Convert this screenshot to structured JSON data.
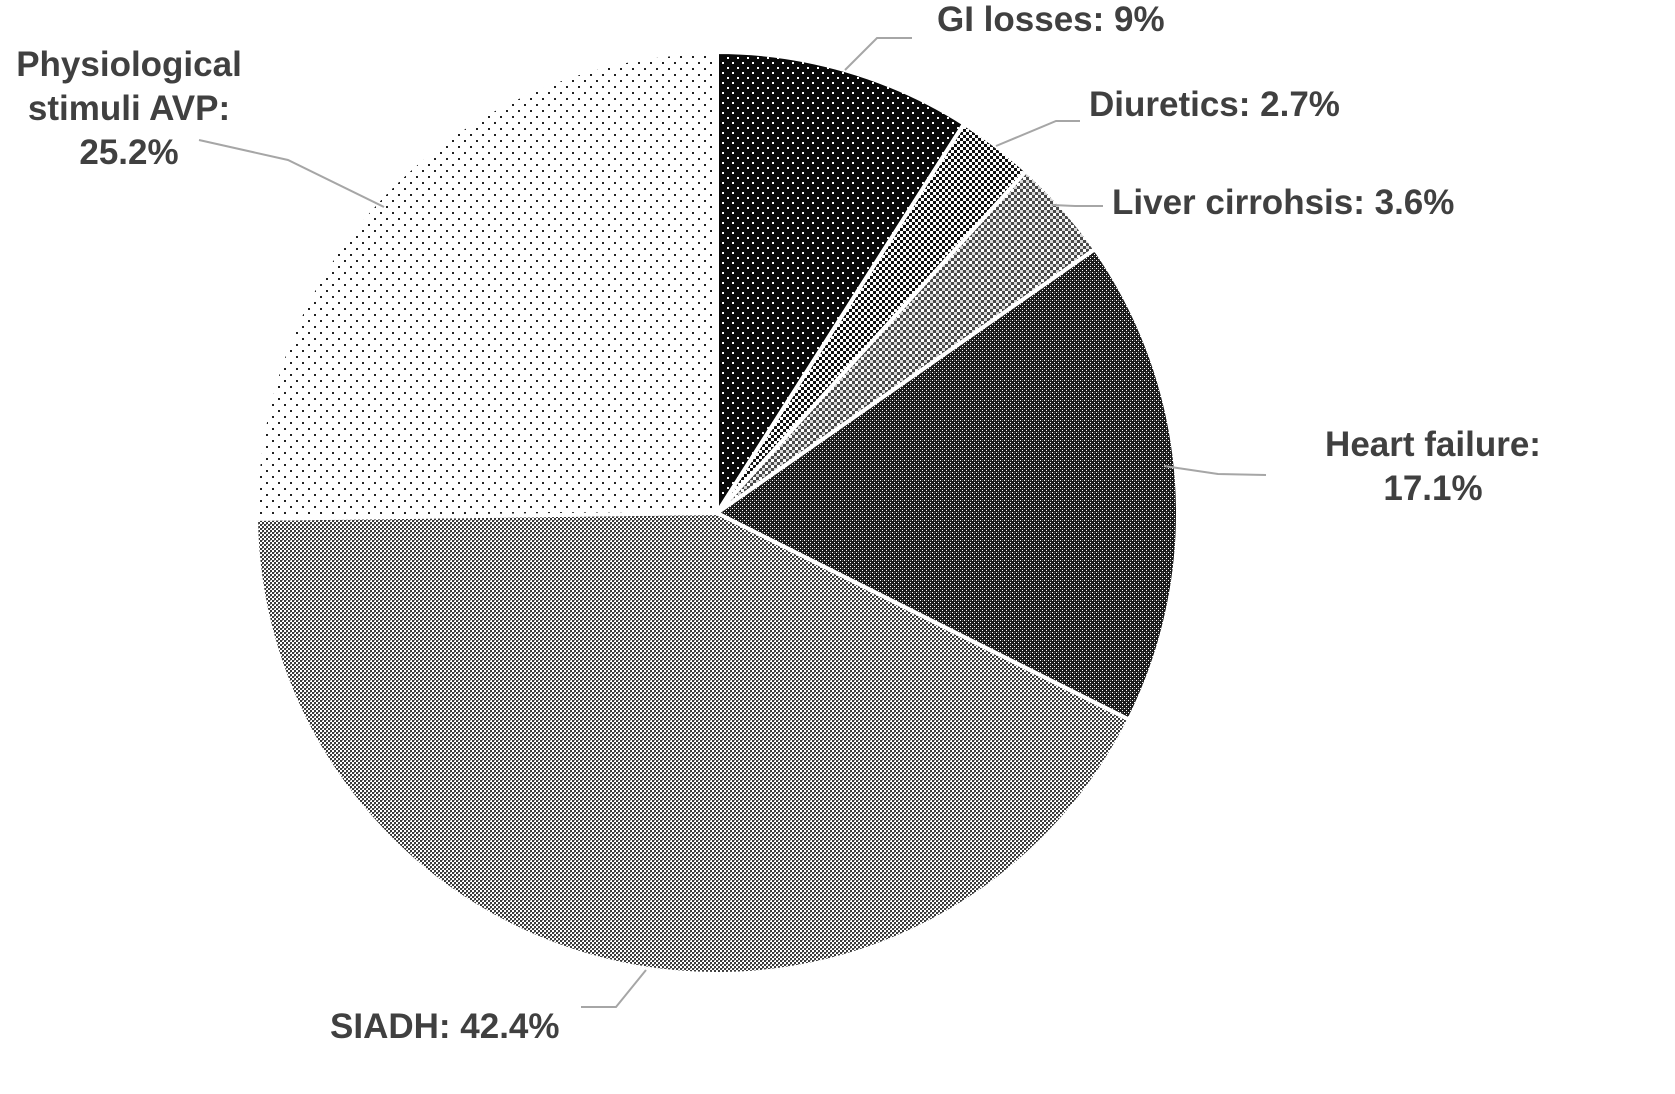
{
  "chart_data": {
    "type": "pie",
    "title": "",
    "start_angle_deg": 0,
    "direction": "clockwise",
    "slices": [
      {
        "name": "GI losses",
        "value": 9.0,
        "label": "GI losses: 9%",
        "pattern": "dots-on-black"
      },
      {
        "name": "Diuretics",
        "value": 2.7,
        "label": "Diuretics: 2.7%",
        "pattern": "checker-coarse"
      },
      {
        "name": "Liver cirrohsis",
        "value": 3.6,
        "label": "Liver cirrohsis: 3.6%",
        "pattern": "checker-light"
      },
      {
        "name": "Heart failure",
        "value": 17.1,
        "label": "Heart failure: 17.1%",
        "label_lines": [
          "Heart failure:",
          "17.1%"
        ],
        "pattern": "checker-dark"
      },
      {
        "name": "SIADH",
        "value": 42.4,
        "label": "SIADH: 42.4%",
        "pattern": "checker-fine"
      },
      {
        "name": "Physiological stimuli AVP",
        "value": 25.2,
        "label": "Physiological stimuli AVP: 25.2%",
        "label_lines": [
          "Physiological",
          "stimuli AVP:",
          "25.2%"
        ],
        "pattern": "sparse-dots"
      }
    ],
    "legend": "none",
    "colors": {
      "label_text": "#404040",
      "leader_line": "#a6a6a6",
      "slice_border": "#ffffff"
    }
  }
}
